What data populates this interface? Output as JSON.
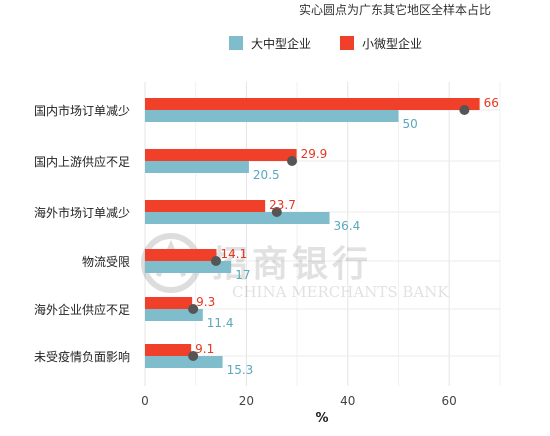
{
  "chart_data": {
    "type": "bar",
    "orientation": "horizontal",
    "note": "实心圆点为广东其它地区全样本占比",
    "xlabel": "%",
    "xlim": [
      0,
      70
    ],
    "xticks": [
      0,
      20,
      40,
      60
    ],
    "grid": true,
    "legend_position": "top-right",
    "categories": [
      "国内市场订单减少",
      "国内上游供应不足",
      "海外市场订单减少",
      "物流受限",
      "海外企业供应不足",
      "未受疫情负面影响"
    ],
    "series": [
      {
        "name": "大中型企业",
        "color": "#7fbccc",
        "label_color": "#5aa9bd",
        "values": [
          50,
          20.5,
          36.4,
          17,
          11.4,
          15.3
        ]
      },
      {
        "name": "小微型企业",
        "color": "#f0402a",
        "label_color": "#e8351f",
        "values": [
          66,
          29.9,
          23.7,
          14.1,
          9.3,
          9.1
        ]
      }
    ],
    "dots": {
      "color": "#555555",
      "values": [
        63,
        29,
        26,
        14,
        9.5,
        9.5
      ]
    },
    "value_labels": {
      "large": [
        "50",
        "20.5",
        "36.4",
        "17",
        "11.4",
        "15.3"
      ],
      "small": [
        "66",
        "29.9",
        "23.7",
        "14.1",
        "9.3",
        "9.1"
      ]
    }
  },
  "watermark": {
    "cn": "招商银行",
    "en": "CHINA MERCHANTS BANK"
  }
}
